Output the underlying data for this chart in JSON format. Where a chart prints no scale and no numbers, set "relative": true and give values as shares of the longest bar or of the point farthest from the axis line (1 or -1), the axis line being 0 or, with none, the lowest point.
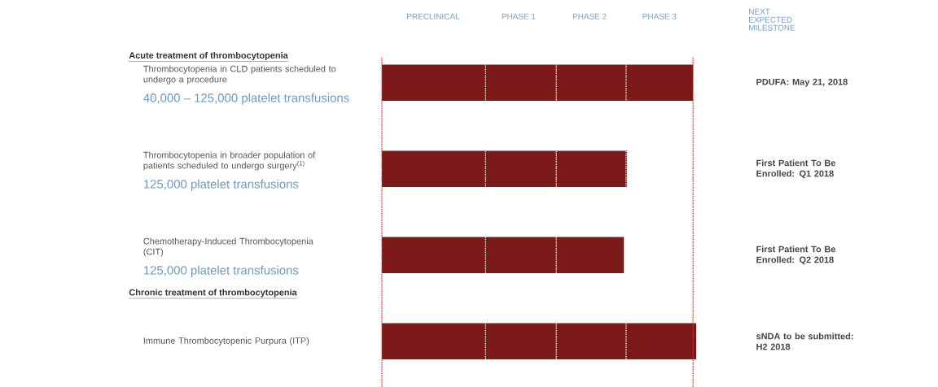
{
  "chart_data": {
    "type": "bar",
    "orientation": "horizontal",
    "relative": true,
    "categories": [
      "Thrombocytopenia in CLD patients scheduled to undergo a procedure",
      "Thrombocytopenia in broader population of patients scheduled to undergo surgery$^{(1)}$",
      "Chemotherapy-Induced Thrombocytopenia (CIT)",
      "Immune Thrombocytopenic Purpura (ITP)"
    ],
    "values": [
      0.99,
      0.78,
      0.77,
      1.0
    ],
    "color": "#7b1a18",
    "ref_lines": [
      {
        "axis": "x",
        "value": 0,
        "color": "#d9302c",
        "line_style": "dotted"
      },
      {
        "axis": "x",
        "value": 0.33,
        "color": "#ffffff",
        "line_style": "dotted"
      },
      {
        "axis": "x",
        "value": 0.555,
        "color": "#ffffff",
        "line_style": "dotted"
      },
      {
        "axis": "x",
        "value": 0.777,
        "color": "#ffffff",
        "line_style": "dotted"
      },
      {
        "axis": "x",
        "value": 0.99,
        "color": "#d9302c",
        "line_style": "dotted"
      }
    ],
    "annotations": [
      "Acute treatment of thrombocytopenia",
      "PRECLINICAL",
      "PHASE 1",
      "PHASE 2",
      "PHASE 3",
      "NEXT EXPECTED MILESTONE",
      "40,000 – 125,000 platelet transfusions",
      "125,000 platelet transfusions",
      "125,000 platelet transfusions",
      "PDUFA: May 21, 2018",
      "First Patient To Be Enrolled: Q1 2018",
      "First Patient To Be Enrolled: Q2 2018",
      "sNDA to be submitted: H2 2018",
      "Chronic treatment of thrombocytopenia"
    ]
  }
}
